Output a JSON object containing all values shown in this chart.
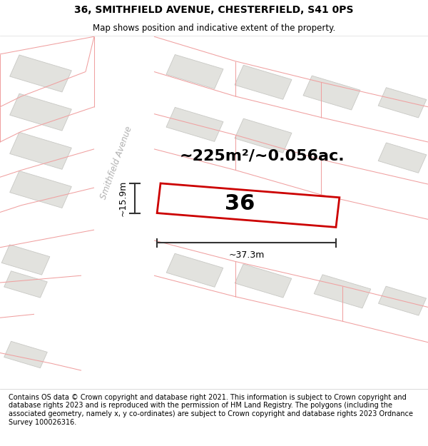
{
  "title": "36, SMITHFIELD AVENUE, CHESTERFIELD, S41 0PS",
  "subtitle": "Map shows position and indicative extent of the property.",
  "footer": "Contains OS data © Crown copyright and database right 2021. This information is subject to Crown copyright and database rights 2023 and is reproduced with the permission of HM Land Registry. The polygons (including the associated geometry, namely x, y co-ordinates) are subject to Crown copyright and database rights 2023 Ordnance Survey 100026316.",
  "area_label": "~225m²/~0.056ac.",
  "property_label": "36",
  "width_label": "~37.3m",
  "height_label": "~15.9m",
  "map_bg": "#f2f2ed",
  "road_color": "#ffffff",
  "building_fill_color": "#e2e2de",
  "building_edge_color": "#c8c8c4",
  "pink_line_color": "#f0a0a0",
  "property_outline_color": "#cc0000",
  "property_fill_color": "#ffffff",
  "street_label": "Smithfield Avenue",
  "title_fontsize": 10,
  "subtitle_fontsize": 8.5,
  "footer_fontsize": 7.0,
  "area_fontsize": 16,
  "label_36_fontsize": 22,
  "measure_fontsize": 9
}
